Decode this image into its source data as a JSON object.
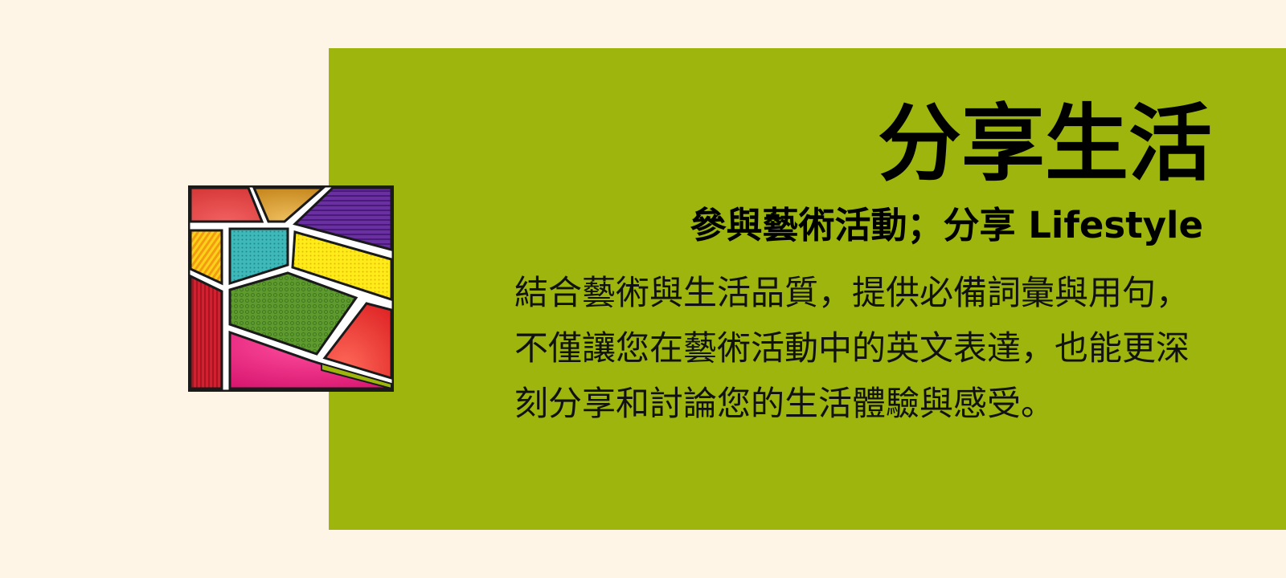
{
  "header": {
    "title": "分享生活",
    "subtitle": "參與藝術活動；分享 Lifestyle"
  },
  "content": {
    "description": "結合藝術與生活品質，提供必備詞彙與用句，不僅讓您在藝術活動中的英文表達，也能更深刻分享和討論您的生活體驗與感受。"
  },
  "illustration": {
    "icon": "stained-glass-pop-art-icon"
  },
  "colors": {
    "background": "#FFF5E6",
    "panel": "#9DB50C",
    "text": "#000000"
  }
}
